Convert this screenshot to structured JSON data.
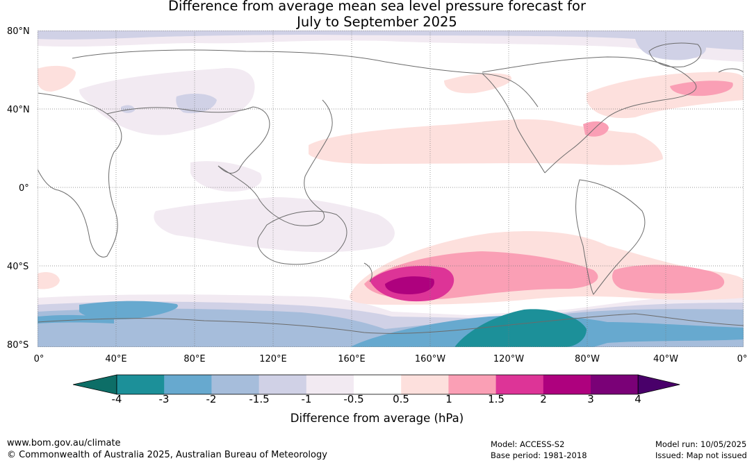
{
  "title_line1": "Difference from average mean sea level pressure forecast for",
  "title_line2": "July to September 2025",
  "lat_labels": [
    "80°N",
    "40°N",
    "0°",
    "40°S",
    "80°S"
  ],
  "lon_labels": [
    "0°",
    "40°E",
    "80°E",
    "120°E",
    "160°E",
    "160°W",
    "120°W",
    "80°W",
    "40°W",
    "0°"
  ],
  "colorbar": {
    "title": "Difference from average (hPa)",
    "tick_labels": [
      "-4",
      "-3",
      "-2",
      "-1.5",
      "-1",
      "-0.5",
      "0.5",
      "1",
      "1.5",
      "2",
      "3",
      "4"
    ],
    "colors": [
      "#0d6e67",
      "#1c9099",
      "#67a9cf",
      "#a6bddb",
      "#d0d1e6",
      "#f2eaf2",
      "#ffffff",
      "#fde0dd",
      "#fa9fb5",
      "#dd3497",
      "#ae017e",
      "#7a0177",
      "#49006a"
    ]
  },
  "footer": {
    "website": "www.bom.gov.au/climate",
    "copyright": "© Commonwealth of Australia 2025, Australian Bureau of Meteorology",
    "model": "Model: ACCESS-S2",
    "base_period": "Base period: 1981-2018",
    "model_run": "Model run: 10/05/2025",
    "issued": "Issued: Map not issued"
  }
}
